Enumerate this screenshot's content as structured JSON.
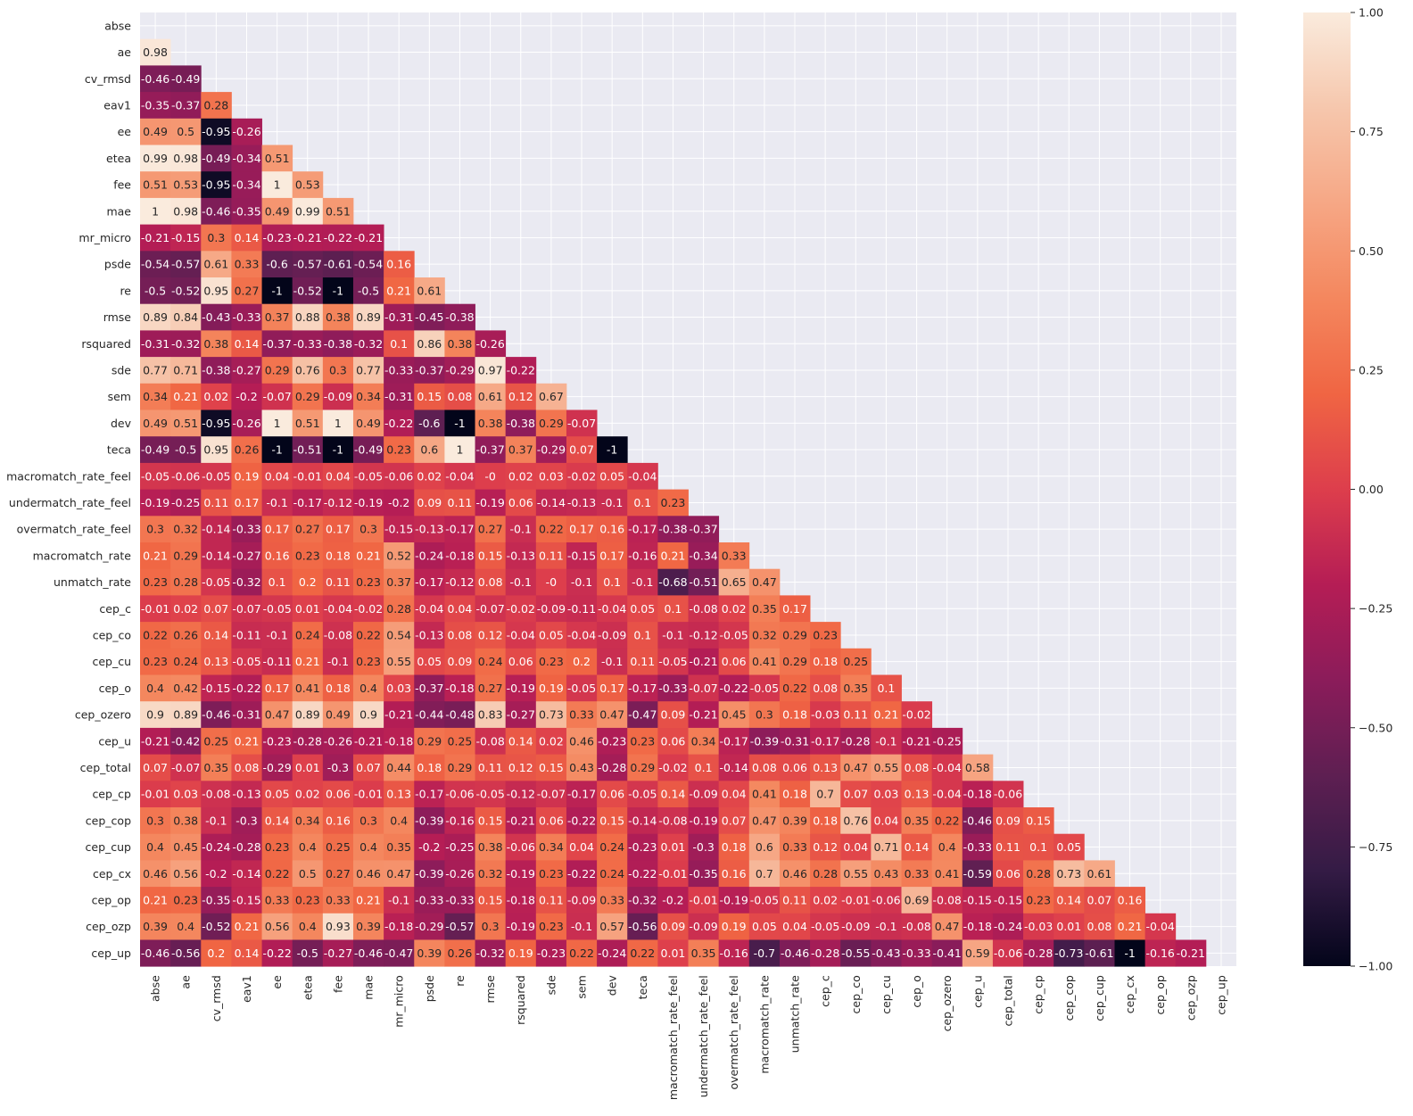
{
  "chart_data": {
    "type": "heatmap",
    "title": "",
    "xlabel": "",
    "ylabel": "",
    "labels": [
      "abse",
      "ae",
      "cv_rmsd",
      "eav1",
      "ee",
      "etea",
      "fee",
      "mae",
      "mr_micro",
      "psde",
      "re",
      "rmse",
      "rsquared",
      "sde",
      "sem",
      "dev",
      "teca",
      "macromatch_rate_feel",
      "undermatch_rate_feel",
      "overmatch_rate_feel",
      "macromatch_rate",
      "unmatch_rate",
      "cep_c",
      "cep_co",
      "cep_cu",
      "cep_o",
      "cep_ozero",
      "cep_u",
      "cep_total",
      "cep_cp",
      "cep_cop",
      "cep_cup",
      "cep_cx",
      "cep_op",
      "cep_ozp",
      "cep_up"
    ],
    "mask": "upper-triangle-including-diagonal",
    "rows": [
      [],
      [
        0.98
      ],
      [
        -0.46,
        -0.49
      ],
      [
        -0.35,
        -0.37,
        0.28
      ],
      [
        0.49,
        0.5,
        -0.95,
        -0.26
      ],
      [
        0.99,
        0.98,
        -0.49,
        -0.34,
        0.51
      ],
      [
        0.51,
        0.53,
        -0.95,
        -0.34,
        1,
        0.53
      ],
      [
        1,
        0.98,
        -0.46,
        -0.35,
        0.49,
        0.99,
        0.51
      ],
      [
        -0.21,
        -0.15,
        0.3,
        0.14,
        -0.23,
        -0.21,
        -0.22,
        -0.21
      ],
      [
        -0.54,
        -0.57,
        0.61,
        0.33,
        -0.6,
        -0.57,
        -0.61,
        -0.54,
        0.16
      ],
      [
        -0.5,
        -0.52,
        0.95,
        0.27,
        -1,
        -0.52,
        -1,
        -0.5,
        0.21,
        0.61
      ],
      [
        0.89,
        0.84,
        -0.43,
        -0.33,
        0.37,
        0.88,
        0.38,
        0.89,
        -0.31,
        -0.45,
        -0.38
      ],
      [
        -0.31,
        -0.32,
        0.38,
        0.14,
        -0.37,
        -0.33,
        -0.38,
        -0.32,
        0.1,
        0.86,
        0.38,
        -0.26
      ],
      [
        0.77,
        0.71,
        -0.38,
        -0.27,
        0.29,
        0.76,
        0.3,
        0.77,
        -0.33,
        -0.37,
        -0.29,
        0.97,
        -0.22
      ],
      [
        0.34,
        0.21,
        0.02,
        -0.2,
        -0.07,
        0.29,
        -0.09,
        0.34,
        -0.31,
        0.15,
        0.08,
        0.61,
        0.12,
        0.67
      ],
      [
        0.49,
        0.51,
        -0.95,
        -0.26,
        1,
        0.51,
        1,
        0.49,
        -0.22,
        -0.6,
        -1,
        0.38,
        -0.38,
        0.29,
        -0.07
      ],
      [
        -0.49,
        -0.5,
        0.95,
        0.26,
        -1,
        -0.51,
        -1,
        -0.49,
        0.23,
        0.6,
        1,
        -0.37,
        0.37,
        -0.29,
        0.07,
        -1
      ],
      [
        -0.05,
        -0.06,
        -0.05,
        0.19,
        0.04,
        -0.01,
        0.04,
        -0.05,
        -0.06,
        0.02,
        -0.04,
        0,
        0.02,
        0.03,
        -0.02,
        0.05,
        -0.04
      ],
      [
        -0.19,
        -0.25,
        0.11,
        0.17,
        -0.1,
        -0.17,
        -0.12,
        -0.19,
        -0.2,
        0.09,
        0.11,
        -0.19,
        0.06,
        -0.14,
        -0.13,
        -0.1,
        0.1,
        0.23
      ],
      [
        0.3,
        0.32,
        -0.14,
        -0.33,
        0.17,
        0.27,
        0.17,
        0.3,
        -0.15,
        -0.13,
        -0.17,
        0.27,
        -0.1,
        0.22,
        0.17,
        0.16,
        -0.17,
        -0.38,
        -0.37
      ],
      [
        0.21,
        0.29,
        -0.14,
        -0.27,
        0.16,
        0.23,
        0.18,
        0.21,
        0.52,
        -0.24,
        -0.18,
        0.15,
        -0.13,
        0.11,
        -0.15,
        0.17,
        -0.16,
        0.21,
        -0.34,
        0.33
      ],
      [
        0.23,
        0.28,
        -0.05,
        -0.32,
        0.1,
        0.2,
        0.11,
        0.23,
        0.37,
        -0.17,
        -0.12,
        0.08,
        -0.1,
        0,
        -0.1,
        0.1,
        -0.1,
        -0.68,
        -0.51,
        0.65,
        0.47
      ],
      [
        -0.01,
        0.02,
        0.07,
        -0.07,
        -0.05,
        0.01,
        -0.04,
        -0.02,
        0.28,
        -0.04,
        0.04,
        -0.07,
        -0.02,
        -0.09,
        -0.11,
        -0.04,
        0.05,
        0.1,
        -0.08,
        0.02,
        0.35,
        0.17
      ],
      [
        0.22,
        0.26,
        0.14,
        -0.11,
        -0.1,
        0.24,
        -0.08,
        0.22,
        0.54,
        -0.13,
        0.08,
        0.12,
        -0.04,
        0.05,
        -0.04,
        -0.09,
        0.1,
        -0.1,
        -0.12,
        -0.05,
        0.32,
        0.29,
        0.23
      ],
      [
        0.23,
        0.24,
        0.13,
        -0.05,
        -0.11,
        0.21,
        -0.1,
        0.23,
        0.55,
        0.05,
        0.09,
        0.24,
        0.06,
        0.23,
        0.2,
        -0.1,
        0.11,
        -0.05,
        -0.21,
        0.06,
        0.41,
        0.29,
        0.18,
        0.25
      ],
      [
        0.4,
        0.42,
        -0.15,
        -0.22,
        0.17,
        0.41,
        0.18,
        0.4,
        0.03,
        -0.37,
        -0.18,
        0.27,
        -0.19,
        0.19,
        -0.05,
        0.17,
        -0.17,
        -0.33,
        -0.07,
        -0.22,
        -0.05,
        0.22,
        0.08,
        0.35,
        0.1
      ],
      [
        0.9,
        0.89,
        -0.46,
        -0.31,
        0.47,
        0.89,
        0.49,
        0.9,
        -0.21,
        -0.44,
        -0.48,
        0.83,
        -0.27,
        0.73,
        0.33,
        0.47,
        -0.47,
        0.09,
        -0.21,
        0.45,
        0.3,
        0.18,
        -0.03,
        0.11,
        0.21,
        -0.02
      ],
      [
        -0.21,
        -0.42,
        0.25,
        0.21,
        -0.23,
        -0.28,
        -0.26,
        -0.21,
        -0.18,
        0.29,
        0.25,
        -0.08,
        0.14,
        0.02,
        0.46,
        -0.23,
        0.23,
        0.06,
        0.34,
        -0.17,
        -0.39,
        -0.31,
        -0.17,
        -0.28,
        -0.1,
        -0.21,
        -0.25
      ],
      [
        0.07,
        -0.07,
        0.35,
        0.08,
        -0.29,
        0.01,
        -0.3,
        0.07,
        0.44,
        0.18,
        0.29,
        0.11,
        0.12,
        0.15,
        0.43,
        -0.28,
        0.29,
        -0.02,
        0.1,
        -0.14,
        0.08,
        0.06,
        0.13,
        0.47,
        0.55,
        0.08,
        -0.04,
        0.58
      ],
      [
        -0.01,
        0.03,
        -0.08,
        -0.13,
        0.05,
        0.02,
        0.06,
        -0.01,
        0.13,
        -0.17,
        -0.06,
        -0.05,
        -0.12,
        -0.07,
        -0.17,
        0.06,
        -0.05,
        0.14,
        -0.09,
        0.04,
        0.41,
        0.18,
        0.7,
        0.07,
        0.03,
        0.13,
        -0.04,
        -0.18,
        -0.06
      ],
      [
        0.3,
        0.38,
        -0.1,
        -0.3,
        0.14,
        0.34,
        0.16,
        0.3,
        0.4,
        -0.39,
        -0.16,
        0.15,
        -0.21,
        0.06,
        -0.22,
        0.15,
        -0.14,
        -0.08,
        -0.19,
        0.07,
        0.47,
        0.39,
        0.18,
        0.76,
        0.04,
        0.35,
        0.22,
        -0.46,
        0.09,
        0.15
      ],
      [
        0.4,
        0.45,
        -0.24,
        -0.28,
        0.23,
        0.4,
        0.25,
        0.4,
        0.35,
        -0.2,
        -0.25,
        0.38,
        -0.06,
        0.34,
        0.04,
        0.24,
        -0.23,
        0.01,
        -0.3,
        0.18,
        0.6,
        0.33,
        0.12,
        0.04,
        0.71,
        0.14,
        0.4,
        -0.33,
        0.11,
        0.1,
        0.05
      ],
      [
        0.46,
        0.56,
        -0.2,
        -0.14,
        0.22,
        0.5,
        0.27,
        0.46,
        0.47,
        -0.39,
        -0.26,
        0.32,
        -0.19,
        0.23,
        -0.22,
        0.24,
        -0.22,
        -0.01,
        -0.35,
        0.16,
        0.7,
        0.46,
        0.28,
        0.55,
        0.43,
        0.33,
        0.41,
        -0.59,
        0.06,
        0.28,
        0.73,
        0.61
      ],
      [
        0.21,
        0.23,
        -0.35,
        -0.15,
        0.33,
        0.23,
        0.33,
        0.21,
        -0.1,
        -0.33,
        -0.33,
        0.15,
        -0.18,
        0.11,
        -0.09,
        0.33,
        -0.32,
        -0.2,
        -0.01,
        -0.19,
        -0.05,
        0.11,
        0.02,
        -0.01,
        -0.06,
        0.69,
        -0.08,
        -0.15,
        -0.15,
        0.23,
        0.14,
        0.07,
        0.16
      ],
      [
        0.39,
        0.4,
        -0.52,
        0.21,
        0.56,
        0.4,
        0.93,
        0.39,
        -0.18,
        -0.29,
        -0.57,
        0.3,
        -0.19,
        0.23,
        -0.1,
        0.57,
        -0.56,
        0.09,
        -0.09,
        0.19,
        0.05,
        0.04,
        -0.05,
        -0.09,
        -0.1,
        -0.08,
        0.47,
        -0.18,
        -0.24,
        -0.03,
        0.01,
        0.08,
        0.21,
        -0.04
      ],
      [
        -0.46,
        -0.56,
        0.2,
        0.14,
        -0.22,
        -0.5,
        -0.27,
        -0.46,
        -0.47,
        0.39,
        0.26,
        -0.32,
        0.19,
        -0.23,
        0.22,
        -0.24,
        0.22,
        0.01,
        0.35,
        -0.16,
        -0.7,
        -0.46,
        -0.28,
        -0.55,
        -0.43,
        -0.33,
        -0.41,
        0.59,
        -0.06,
        -0.28,
        -0.73,
        -0.61,
        -1,
        -0.16,
        -0.21
      ]
    ],
    "vmin": -1,
    "vmax": 1,
    "colorbar_ticks": [
      {
        "value": 1,
        "label": "1.00"
      },
      {
        "value": 0.75,
        "label": "0.75"
      },
      {
        "value": 0.5,
        "label": "0.50"
      },
      {
        "value": 0.25,
        "label": "0.25"
      },
      {
        "value": 0,
        "label": "0.00"
      },
      {
        "value": -0.25,
        "label": "−0.25"
      },
      {
        "value": -0.5,
        "label": "−0.50"
      },
      {
        "value": -0.75,
        "label": "−0.75"
      },
      {
        "value": -1,
        "label": "−1.00"
      }
    ],
    "colormap": "rocket",
    "colorbar": "right",
    "grid": true
  },
  "colors": {
    "plot_background": "#eaeaf2",
    "grid": "#ffffff",
    "text_dark": "#262626",
    "colormap_stops": [
      "#03051a",
      "#341b45",
      "#5e1f52",
      "#8b1c5a",
      "#b51d55",
      "#dd3e4c",
      "#f06543",
      "#f4875e",
      "#f6a785",
      "#f6c7ad",
      "#faebdd"
    ]
  }
}
